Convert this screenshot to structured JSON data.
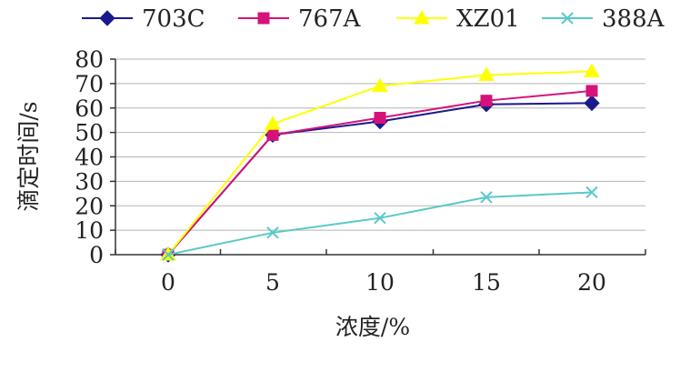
{
  "chart_data": {
    "type": "line",
    "title": "",
    "xlabel": "浓度/%",
    "ylabel": "滴定时间/s",
    "categories": [
      0,
      5,
      10,
      15,
      20
    ],
    "ylim": [
      0,
      80
    ],
    "yticks": [
      0,
      10,
      20,
      30,
      40,
      50,
      60,
      70,
      80
    ],
    "grid": "horizontal",
    "legend_position": "top",
    "series": [
      {
        "name": "703C",
        "color": "#1a1a8c",
        "marker": "diamond",
        "values": [
          0,
          49,
          54.5,
          61.5,
          62
        ]
      },
      {
        "name": "767A",
        "color": "#d4127a",
        "marker": "square",
        "values": [
          0,
          49,
          56,
          63,
          67
        ]
      },
      {
        "name": "XZ01",
        "color": "#ffff00",
        "marker": "triangle",
        "values": [
          0,
          53.5,
          69,
          73.5,
          75
        ]
      },
      {
        "name": "388A",
        "color": "#5bc8c8",
        "marker": "x",
        "values": [
          0,
          9,
          15,
          23.5,
          25.5
        ]
      }
    ]
  }
}
